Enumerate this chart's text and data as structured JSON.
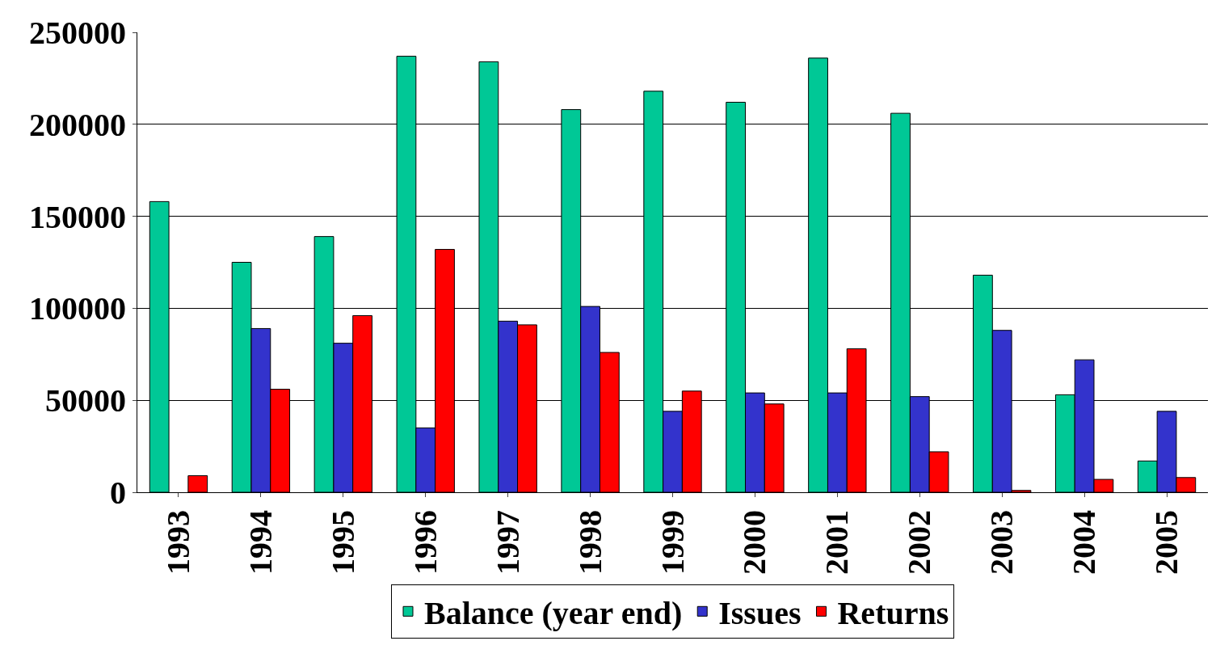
{
  "chart_data": {
    "type": "bar",
    "categories": [
      "1993",
      "1994",
      "1995",
      "1996",
      "1997",
      "1998",
      "1999",
      "2000",
      "2001",
      "2002",
      "2003",
      "2004",
      "2005"
    ],
    "series": [
      {
        "name": "Balance (year end)",
        "color": "#00c896",
        "values": [
          158000,
          125000,
          139000,
          237000,
          234000,
          208000,
          218000,
          212000,
          236000,
          206000,
          118000,
          53000,
          17000
        ]
      },
      {
        "name": "Issues",
        "color": "#3333cc",
        "values": [
          null,
          89000,
          81000,
          35000,
          93000,
          101000,
          44000,
          54000,
          54000,
          52000,
          88000,
          72000,
          44000
        ]
      },
      {
        "name": "Returns",
        "color": "#ff0000",
        "values": [
          9000,
          56000,
          96000,
          132000,
          91000,
          76000,
          55000,
          48000,
          78000,
          22000,
          1000,
          7000,
          8000
        ]
      }
    ],
    "ylim": [
      0,
      250000
    ],
    "yticks": [
      0,
      50000,
      100000,
      150000,
      200000,
      250000
    ],
    "grid": "y",
    "legend": "bottom"
  }
}
